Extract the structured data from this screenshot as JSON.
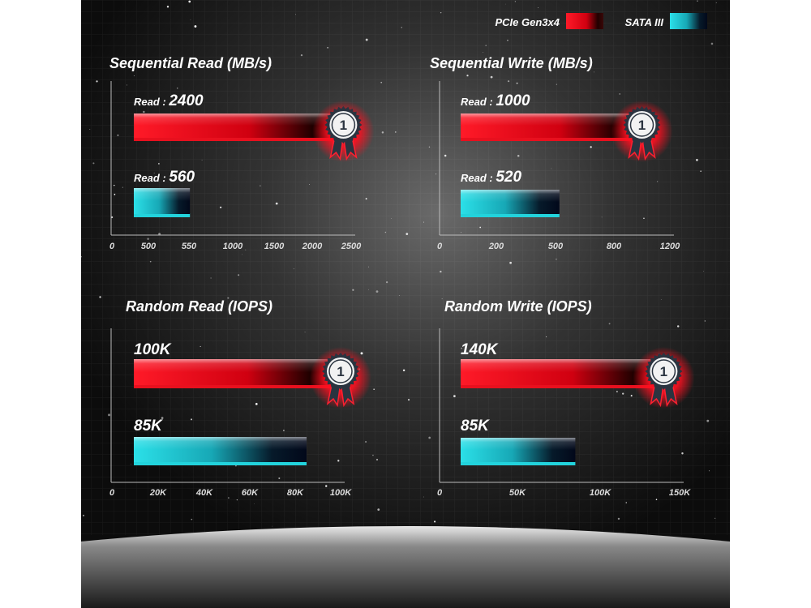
{
  "legend": {
    "placement": "top-right",
    "items": [
      {
        "name": "PCIe Gen3x4",
        "color": "#e8101e"
      },
      {
        "name": "SATA III",
        "color": "#22d3dc"
      }
    ]
  },
  "colors": {
    "pcie": "#e8101e",
    "sata": "#22d3dc",
    "background": "#141414"
  },
  "badge_text": "1",
  "chart_data": [
    {
      "type": "bar",
      "orientation": "horizontal",
      "title": "Sequential Read (MB/s)",
      "tick_labels": [
        "0",
        "500",
        "550",
        "1000",
        "1500",
        "2000",
        "2500"
      ],
      "tick_values": [
        0,
        500,
        550,
        1000,
        1500,
        2000,
        2500
      ],
      "series": [
        {
          "name": "PCIe Gen3x4",
          "label_prefix": "Read : ",
          "label_value": "2400",
          "value": 2400,
          "winner": true
        },
        {
          "name": "SATA III",
          "label_prefix": "Read : ",
          "label_value": "560",
          "value": 560,
          "winner": false
        }
      ]
    },
    {
      "type": "bar",
      "orientation": "horizontal",
      "title": "Sequential Write (MB/s)",
      "tick_labels": [
        "0",
        "200",
        "500",
        "800",
        "1200"
      ],
      "tick_values": [
        0,
        200,
        500,
        800,
        1200
      ],
      "series": [
        {
          "name": "PCIe Gen3x4",
          "label_prefix": "Read : ",
          "label_value": "1000",
          "value": 1000,
          "winner": true
        },
        {
          "name": "SATA III",
          "label_prefix": "Read : ",
          "label_value": "520",
          "value": 520,
          "winner": false
        }
      ]
    },
    {
      "type": "bar",
      "orientation": "horizontal",
      "title": "Random Read (IOPS)",
      "tick_labels": [
        "0",
        "20K",
        "40K",
        "60K",
        "80K",
        "100K"
      ],
      "tick_values": [
        0,
        20000,
        40000,
        60000,
        80000,
        100000
      ],
      "series": [
        {
          "name": "PCIe Gen3x4",
          "label_prefix": "",
          "label_value": "100K",
          "value": 100000,
          "winner": true
        },
        {
          "name": "SATA III",
          "label_prefix": "",
          "label_value": "85K",
          "value": 85000,
          "winner": false
        }
      ]
    },
    {
      "type": "bar",
      "orientation": "horizontal",
      "title": "Random Write (IOPS)",
      "tick_labels": [
        "0",
        "50K",
        "100K",
        "150K"
      ],
      "tick_values": [
        0,
        50000,
        100000,
        150000
      ],
      "series": [
        {
          "name": "PCIe Gen3x4",
          "label_prefix": "",
          "label_value": "140K",
          "value": 140000,
          "winner": true
        },
        {
          "name": "SATA III",
          "label_prefix": "",
          "label_value": "85K",
          "value": 85000,
          "winner": false
        }
      ]
    }
  ]
}
